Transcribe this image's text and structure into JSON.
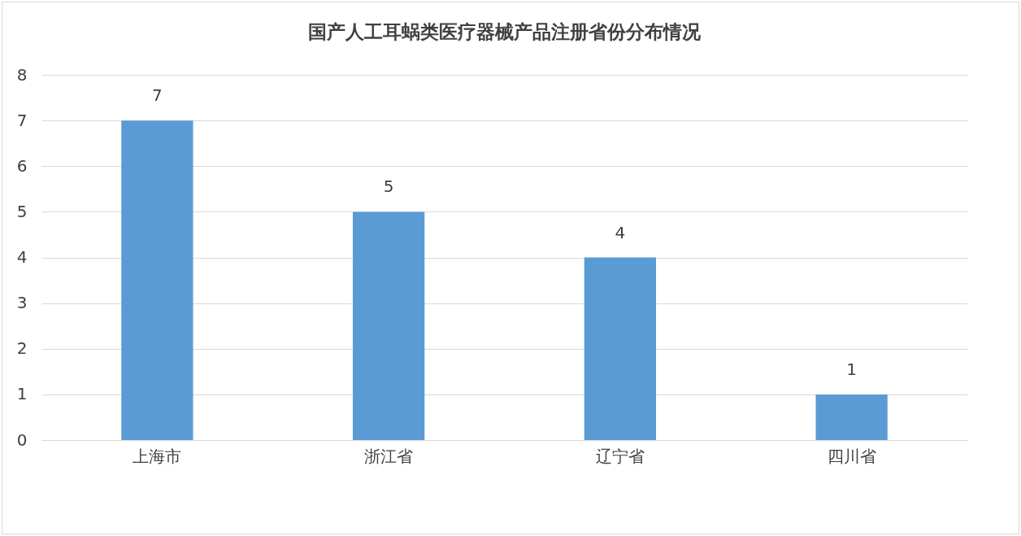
{
  "chart_data": {
    "type": "bar",
    "title": "国产人工耳蜗类医疗器械产品注册省份分布情况",
    "categories": [
      "上海市",
      "浙江省",
      "辽宁省",
      "四川省"
    ],
    "values": [
      7,
      5,
      4,
      1
    ],
    "color": "#5b9bd5",
    "ylim": [
      0,
      8
    ],
    "yticks": [
      0,
      1,
      2,
      3,
      4,
      5,
      6,
      7,
      8
    ],
    "grid": "y",
    "data_labels": true
  }
}
